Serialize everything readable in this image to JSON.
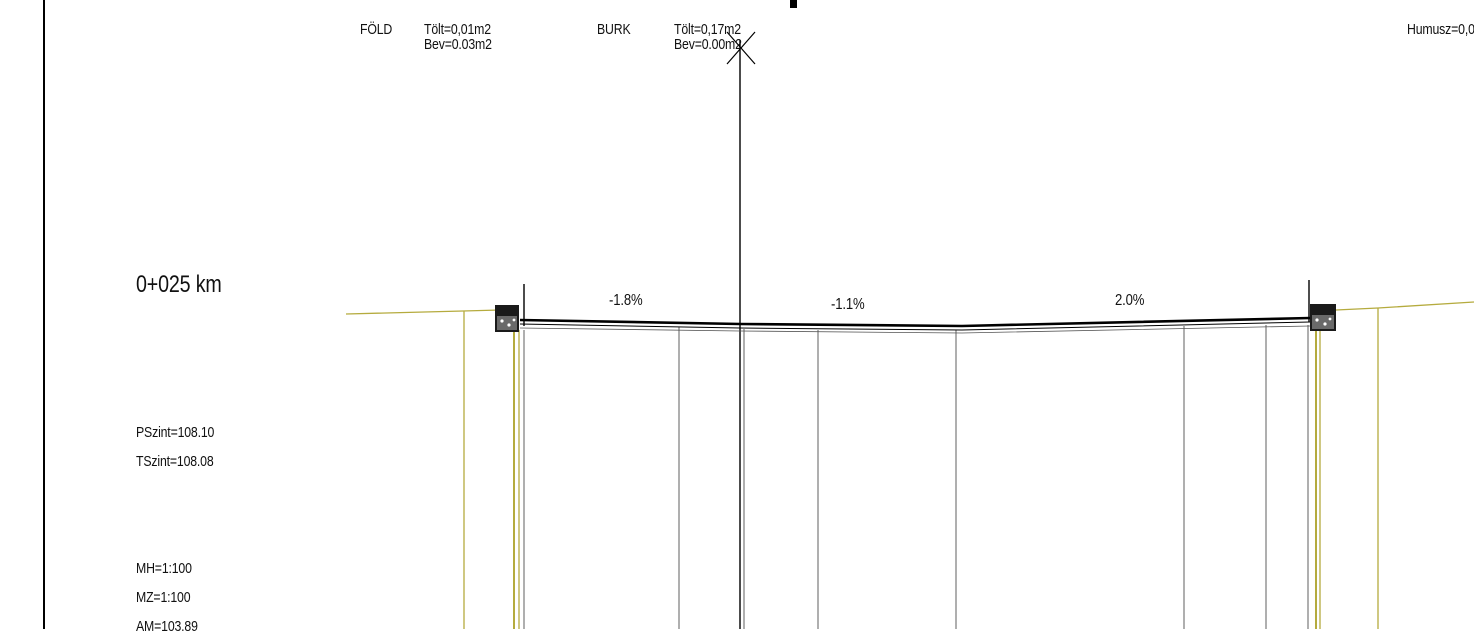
{
  "earthwork": {
    "fold": {
      "label": "FÖLD",
      "fill": "Tölt=0,01m2",
      "cut": "Bev=0.03m2"
    },
    "burk": {
      "label": "BURK",
      "fill": "Tölt=0,17m2",
      "cut": "Bev=0.00m2"
    },
    "humus": "Humusz=0,0"
  },
  "station": "0+025 km",
  "slopes": [
    "-1.8%",
    "-1.1%",
    "2.0%"
  ],
  "levels": {
    "design": "PSzint=108.10",
    "terrain": "TSzint=108.08"
  },
  "scales": {
    "horizontal": "MH=1:100",
    "vertical": "MZ=1:100",
    "datum": "AM=103.89"
  },
  "colors": {
    "terrain": "#b5ab3e",
    "lines": "#000000",
    "vertical": "#7a7a7a"
  }
}
